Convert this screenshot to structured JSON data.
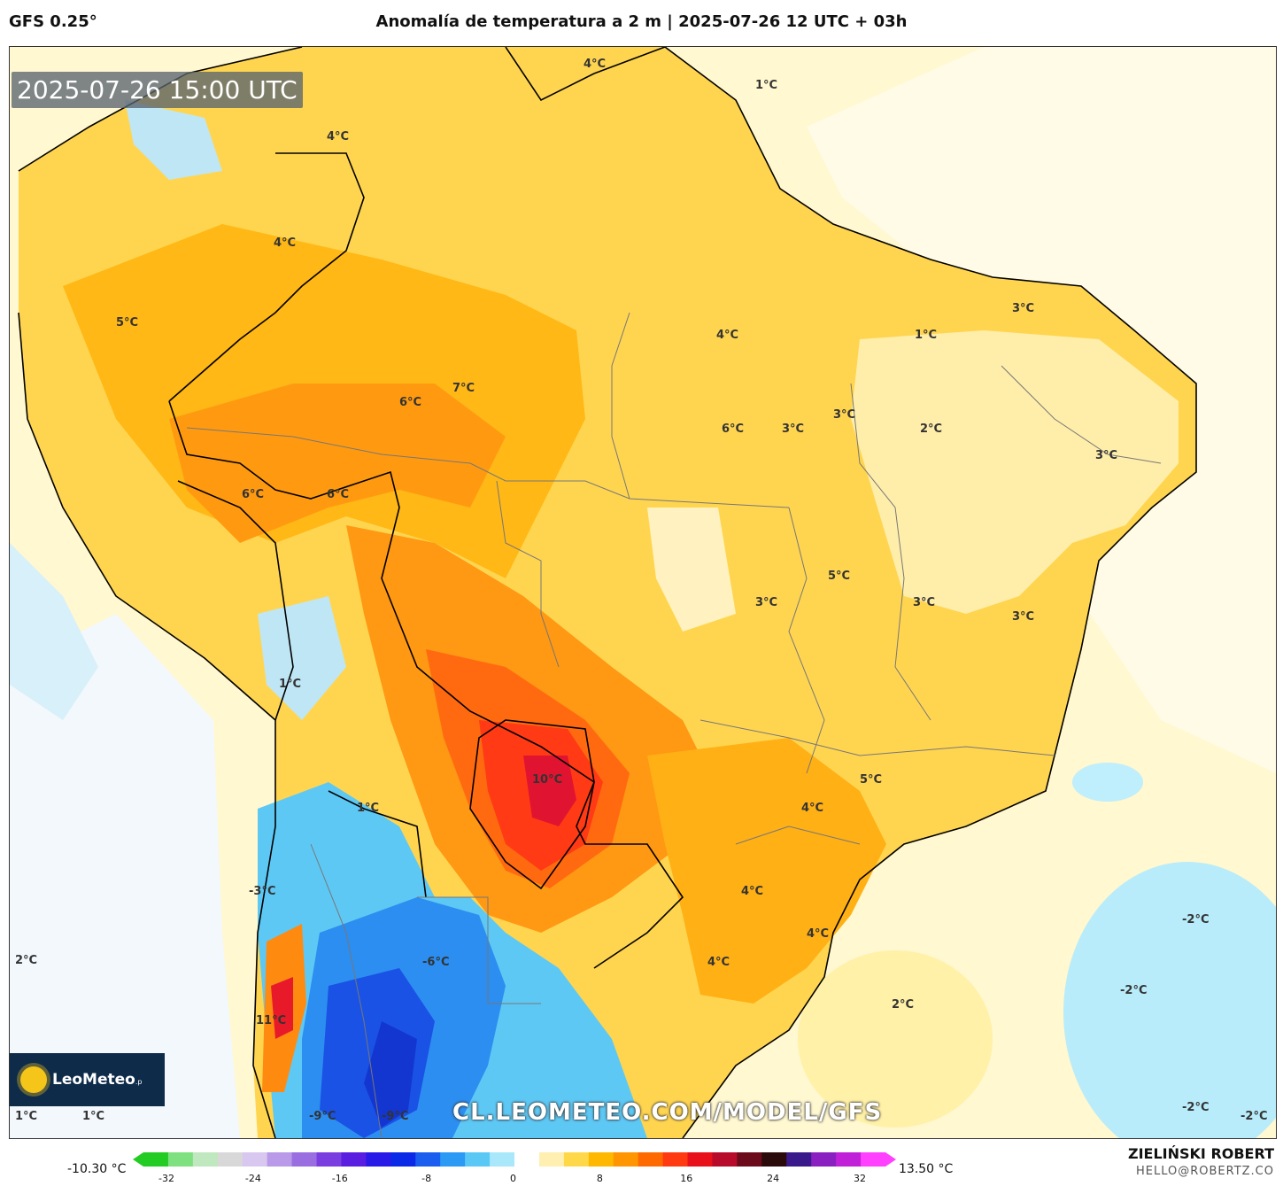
{
  "header": {
    "model": "GFS 0.25°",
    "title": "Anomalía de temperatura a 2 m | 2025-07-26 12 UTC + 03h"
  },
  "map": {
    "timestamp": "2025-07-26 15:00 UTC",
    "watermark": "CL.LEOMETEO.COM/MODEL/GFS",
    "temperature_labels": [
      "4°C",
      "1°C",
      "4°C",
      "4°C",
      "5°C",
      "4°C",
      "1°C",
      "3°C",
      "6°C",
      "7°C",
      "6°C",
      "3°C",
      "3°C",
      "2°C",
      "3°C",
      "6°C",
      "6°C",
      "5°C",
      "3°C",
      "3°C",
      "3°C",
      "1°C",
      "10°C",
      "5°C",
      "1°C",
      "4°C",
      "-3°C",
      "4°C",
      "4°C",
      "-6°C",
      "4°C",
      "-2°C",
      "2°C",
      "11°C",
      "-2°C",
      "2°C",
      "1°C",
      "1°C",
      "-9°C",
      "-9°C",
      "-2°C",
      "-2°C"
    ]
  },
  "logo": {
    "brand": "LeoMeteo",
    "suffix": ".p"
  },
  "colorbar": {
    "min_label": "-10.30 °C",
    "max_label": "13.50 °C",
    "ticks": [
      "-32",
      "-24",
      "-16",
      "-8",
      "0",
      "8",
      "16",
      "24",
      "32"
    ],
    "colors": [
      "#22cc22",
      "#7fe07f",
      "#bfe8bf",
      "#d8d8d8",
      "#d8c8f0",
      "#b89ae8",
      "#9a6ee0",
      "#7a3ee0",
      "#5a1ee0",
      "#2a1ae8",
      "#0a2ae8",
      "#1a5ef0",
      "#2a9af5",
      "#5ac8f5",
      "#a8e8fa",
      "#ffffff",
      "#ffefb0",
      "#ffd84a",
      "#ffb800",
      "#ff9500",
      "#ff6a00",
      "#ff3a10",
      "#e8101a",
      "#b80a2a",
      "#6a0a1a",
      "#2a0a0a",
      "#3a1a8a",
      "#8a20c0",
      "#c020d8",
      "#ff40ff"
    ]
  },
  "credits": {
    "author": "ZIELIŃSKI ROBERT",
    "email": "HELLO@ROBERTZ.CO"
  }
}
